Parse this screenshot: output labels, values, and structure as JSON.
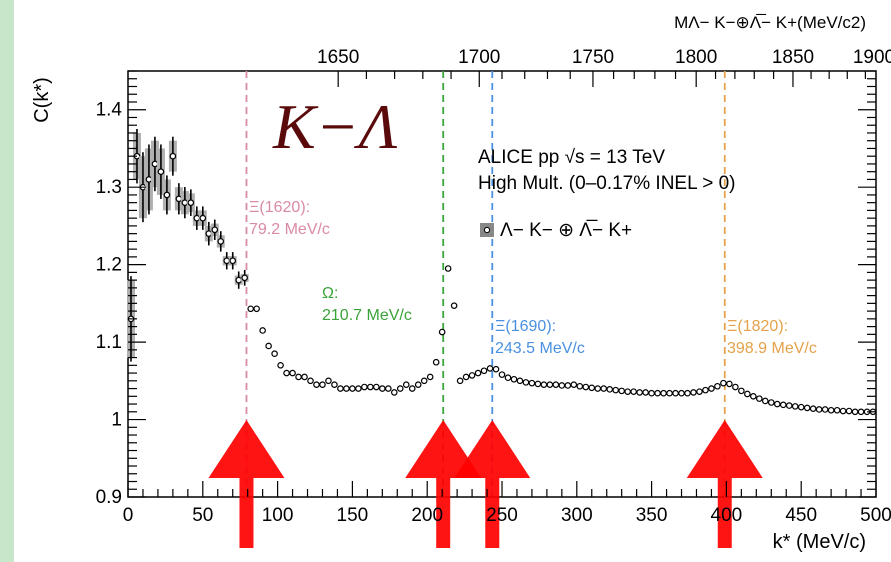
{
  "chart_data": {
    "type": "scatter",
    "title": "K−Λ",
    "xlabel": "k* (MeV/c)",
    "ylabel": "C(k*)",
    "top_axis_label": "MΛ− K−⊕Λ̅− K+(MeV/c2)",
    "xlim": [
      0,
      500
    ],
    "ylim": [
      0.9,
      1.45
    ],
    "x_ticks": [
      0,
      50,
      100,
      150,
      200,
      250,
      300,
      350,
      400,
      450,
      500
    ],
    "y_ticks": [
      0.9,
      1,
      1.1,
      1.2,
      1.3,
      1.4
    ],
    "y_tick_labels": [
      "0.9",
      "1",
      "1.1",
      "1.2",
      "1.3",
      "1.4"
    ],
    "top_ticks": [
      {
        "label": "1650",
        "k": 140.5
      },
      {
        "label": "1700",
        "k": 234.8
      },
      {
        "label": "1750",
        "k": 310.8
      },
      {
        "label": "1800",
        "k": 379.8
      },
      {
        "label": "1850",
        "k": 444.5
      },
      {
        "label": "1900",
        "k": 505.0
      }
    ],
    "legend": {
      "line1": "ALICE pp √s = 13 TeV",
      "line2": "High Mult. (0–0.17% INEL > 0)",
      "series_label": "Λ− K− ⊕ Λ̅− K+",
      "series_color": "#888888"
    },
    "series": [
      {
        "name": "Λ− K− ⊕ Λ̅− K+",
        "points": [
          [
            2,
            1.13,
            0.05
          ],
          [
            6,
            1.34,
            0.03
          ],
          [
            10,
            1.3,
            0.04
          ],
          [
            14,
            1.31,
            0.04
          ],
          [
            18,
            1.33,
            0.03
          ],
          [
            22,
            1.32,
            0.03
          ],
          [
            26,
            1.29,
            0.02
          ],
          [
            30,
            1.34,
            0.02
          ],
          [
            34,
            1.285,
            0.015
          ],
          [
            38,
            1.28,
            0.015
          ],
          [
            42,
            1.28,
            0.012
          ],
          [
            46,
            1.26,
            0.01
          ],
          [
            50,
            1.26,
            0.01
          ],
          [
            54,
            1.24,
            0.01
          ],
          [
            58,
            1.245,
            0.008
          ],
          [
            62,
            1.23,
            0.008
          ],
          [
            66,
            1.205,
            0.006
          ],
          [
            70,
            1.205,
            0.006
          ],
          [
            74,
            1.18,
            0.006
          ],
          [
            78,
            1.183,
            0.005
          ],
          [
            82,
            1.143,
            0.005
          ],
          [
            86,
            1.143,
            0.004
          ],
          [
            90,
            1.115,
            0.004
          ],
          [
            94,
            1.095,
            0.004
          ],
          [
            98,
            1.085,
            0.004
          ],
          [
            102,
            1.07,
            0.003
          ],
          [
            106,
            1.06,
            0.003
          ],
          [
            110,
            1.06,
            0.003
          ],
          [
            114,
            1.055,
            0.003
          ],
          [
            118,
            1.055,
            0.003
          ],
          [
            122,
            1.05,
            0.003
          ],
          [
            126,
            1.045,
            0.003
          ],
          [
            130,
            1.045,
            0.003
          ],
          [
            134,
            1.05,
            0.003
          ],
          [
            138,
            1.045,
            0.003
          ],
          [
            142,
            1.04,
            0.003
          ],
          [
            146,
            1.04,
            0.003
          ],
          [
            150,
            1.04,
            0.003
          ],
          [
            154,
            1.04,
            0.003
          ],
          [
            158,
            1.042,
            0.003
          ],
          [
            162,
            1.042,
            0.003
          ],
          [
            166,
            1.042,
            0.003
          ],
          [
            170,
            1.04,
            0.003
          ],
          [
            174,
            1.04,
            0.003
          ],
          [
            178,
            1.035,
            0.003
          ],
          [
            182,
            1.04,
            0.003
          ],
          [
            186,
            1.045,
            0.003
          ],
          [
            190,
            1.04,
            0.003
          ],
          [
            194,
            1.045,
            0.003
          ],
          [
            198,
            1.05,
            0.003
          ],
          [
            202,
            1.055,
            0.003
          ],
          [
            206,
            1.074,
            0.003
          ],
          [
            210,
            1.113,
            0.004
          ],
          [
            214,
            1.195,
            0.005
          ],
          [
            218,
            1.147,
            0.004
          ],
          [
            222,
            1.05,
            0.003
          ],
          [
            226,
            1.055,
            0.003
          ],
          [
            230,
            1.057,
            0.003
          ],
          [
            234,
            1.06,
            0.003
          ],
          [
            238,
            1.063,
            0.003
          ],
          [
            242,
            1.066,
            0.003
          ],
          [
            246,
            1.065,
            0.003
          ],
          [
            250,
            1.058,
            0.003
          ],
          [
            254,
            1.054,
            0.003
          ],
          [
            258,
            1.052,
            0.003
          ],
          [
            262,
            1.05,
            0.003
          ],
          [
            266,
            1.048,
            0.003
          ],
          [
            270,
            1.047,
            0.003
          ],
          [
            274,
            1.046,
            0.003
          ],
          [
            278,
            1.045,
            0.003
          ],
          [
            282,
            1.045,
            0.003
          ],
          [
            286,
            1.045,
            0.003
          ],
          [
            290,
            1.044,
            0.003
          ],
          [
            294,
            1.044,
            0.003
          ],
          [
            298,
            1.045,
            0.003
          ],
          [
            302,
            1.043,
            0.003
          ],
          [
            306,
            1.042,
            0.003
          ],
          [
            310,
            1.041,
            0.003
          ],
          [
            314,
            1.04,
            0.003
          ],
          [
            318,
            1.04,
            0.003
          ],
          [
            322,
            1.039,
            0.003
          ],
          [
            326,
            1.038,
            0.003
          ],
          [
            330,
            1.037,
            0.003
          ],
          [
            334,
            1.036,
            0.003
          ],
          [
            338,
            1.036,
            0.003
          ],
          [
            342,
            1.035,
            0.003
          ],
          [
            346,
            1.035,
            0.003
          ],
          [
            350,
            1.034,
            0.003
          ],
          [
            354,
            1.034,
            0.003
          ],
          [
            358,
            1.034,
            0.003
          ],
          [
            362,
            1.034,
            0.003
          ],
          [
            366,
            1.034,
            0.003
          ],
          [
            370,
            1.034,
            0.003
          ],
          [
            374,
            1.034,
            0.003
          ],
          [
            378,
            1.035,
            0.003
          ],
          [
            382,
            1.036,
            0.003
          ],
          [
            386,
            1.038,
            0.003
          ],
          [
            390,
            1.04,
            0.003
          ],
          [
            394,
            1.043,
            0.003
          ],
          [
            398,
            1.047,
            0.003
          ],
          [
            402,
            1.046,
            0.003
          ],
          [
            406,
            1.042,
            0.003
          ],
          [
            410,
            1.037,
            0.003
          ],
          [
            414,
            1.033,
            0.003
          ],
          [
            418,
            1.03,
            0.003
          ],
          [
            422,
            1.027,
            0.003
          ],
          [
            426,
            1.024,
            0.003
          ],
          [
            430,
            1.022,
            0.003
          ],
          [
            434,
            1.02,
            0.003
          ],
          [
            438,
            1.019,
            0.003
          ],
          [
            442,
            1.018,
            0.003
          ],
          [
            446,
            1.017,
            0.003
          ],
          [
            450,
            1.016,
            0.003
          ],
          [
            454,
            1.015,
            0.003
          ],
          [
            458,
            1.014,
            0.003
          ],
          [
            462,
            1.013,
            0.003
          ],
          [
            466,
            1.013,
            0.003
          ],
          [
            470,
            1.012,
            0.003
          ],
          [
            474,
            1.012,
            0.003
          ],
          [
            478,
            1.011,
            0.003
          ],
          [
            482,
            1.011,
            0.003
          ],
          [
            486,
            1.01,
            0.003
          ],
          [
            490,
            1.01,
            0.003
          ],
          [
            494,
            1.01,
            0.003
          ],
          [
            498,
            1.01,
            0.003
          ]
        ]
      }
    ],
    "thresholds": [
      {
        "name": "Ξ(1620):",
        "value": "79.2 MeV/c",
        "k": 79.2,
        "color": "#d98aa5"
      },
      {
        "name": "Ω:",
        "value": "210.7 MeV/c",
        "k": 210.7,
        "color": "#3aa33a"
      },
      {
        "name": "Ξ(1690):",
        "value": "243.5 MeV/c",
        "k": 243.5,
        "color": "#4a90e2"
      },
      {
        "name": "Ξ(1820):",
        "value": "398.9 MeV/c",
        "k": 398.9,
        "color": "#e5a24a"
      }
    ],
    "arrow_color": "#ff0000"
  }
}
